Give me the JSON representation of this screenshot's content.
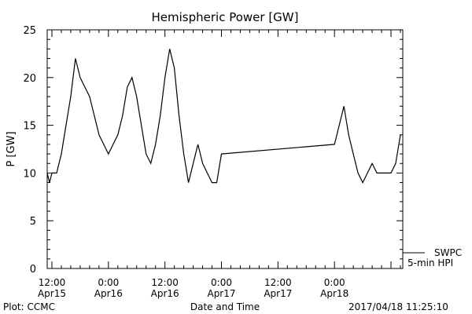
{
  "chart_data": {
    "type": "line",
    "title": "Hemispheric Power [GW]",
    "xlabel": "Date and Time",
    "ylabel": "P [GW]",
    "ylim": [
      0,
      25
    ],
    "xlim": [
      "2017-04-15 11:00",
      "2017-04-18 14:30"
    ],
    "yticks": [
      0,
      5,
      10,
      15,
      20,
      25
    ],
    "xticks": [
      {
        "line1": "12:00",
        "line2": "Apr15"
      },
      {
        "line1": "0:00",
        "line2": "Apr16"
      },
      {
        "line1": "12:00",
        "line2": "Apr16"
      },
      {
        "line1": "0:00",
        "line2": "Apr17"
      },
      {
        "line1": "12:00",
        "line2": "Apr17"
      },
      {
        "line1": "0:00",
        "line2": "Apr18"
      }
    ],
    "series": [
      {
        "name": "SWPC",
        "legend_subtitle": "5-min HPI",
        "color": "#000000",
        "x": [
          "2017-04-15 11:00",
          "2017-04-15 11:30",
          "2017-04-15 12:00",
          "2017-04-15 13:00",
          "2017-04-15 14:00",
          "2017-04-15 15:00",
          "2017-04-15 16:00",
          "2017-04-15 17:00",
          "2017-04-15 18:00",
          "2017-04-15 19:00",
          "2017-04-15 20:00",
          "2017-04-15 21:00",
          "2017-04-15 22:00",
          "2017-04-15 23:00",
          "2017-04-16 00:00",
          "2017-04-16 01:00",
          "2017-04-16 02:00",
          "2017-04-16 03:00",
          "2017-04-16 04:00",
          "2017-04-16 05:00",
          "2017-04-16 06:00",
          "2017-04-16 07:00",
          "2017-04-16 08:00",
          "2017-04-16 09:00",
          "2017-04-16 10:00",
          "2017-04-16 11:00",
          "2017-04-16 12:00",
          "2017-04-16 13:00",
          "2017-04-16 14:00",
          "2017-04-16 15:00",
          "2017-04-16 16:00",
          "2017-04-16 17:00",
          "2017-04-16 18:00",
          "2017-04-16 19:00",
          "2017-04-16 20:00",
          "2017-04-16 21:00",
          "2017-04-16 22:00",
          "2017-04-16 23:00",
          "2017-04-17 00:00",
          "2017-04-18 00:00",
          "2017-04-18 01:00",
          "2017-04-18 02:00",
          "2017-04-18 03:00",
          "2017-04-18 04:00",
          "2017-04-18 05:00",
          "2017-04-18 06:00",
          "2017-04-18 07:00",
          "2017-04-18 08:00",
          "2017-04-18 09:00",
          "2017-04-18 10:00",
          "2017-04-18 11:00",
          "2017-04-18 12:00",
          "2017-04-18 13:00",
          "2017-04-18 14:00"
        ],
        "y": [
          10,
          9,
          10,
          10,
          12,
          15,
          18,
          22,
          20,
          19,
          18,
          16,
          14,
          13,
          12,
          13,
          14,
          16,
          19,
          20,
          18,
          15,
          12,
          11,
          13,
          16,
          20,
          23,
          21,
          16,
          12,
          9,
          11,
          13,
          11,
          10,
          9,
          9,
          12,
          13,
          15,
          17,
          14,
          12,
          10,
          9,
          10,
          11,
          10,
          10,
          10,
          10,
          11,
          14
        ]
      }
    ]
  },
  "footer": {
    "plot_credit": "Plot: CCMC",
    "timestamp": "2017/04/18 11:25:10"
  }
}
